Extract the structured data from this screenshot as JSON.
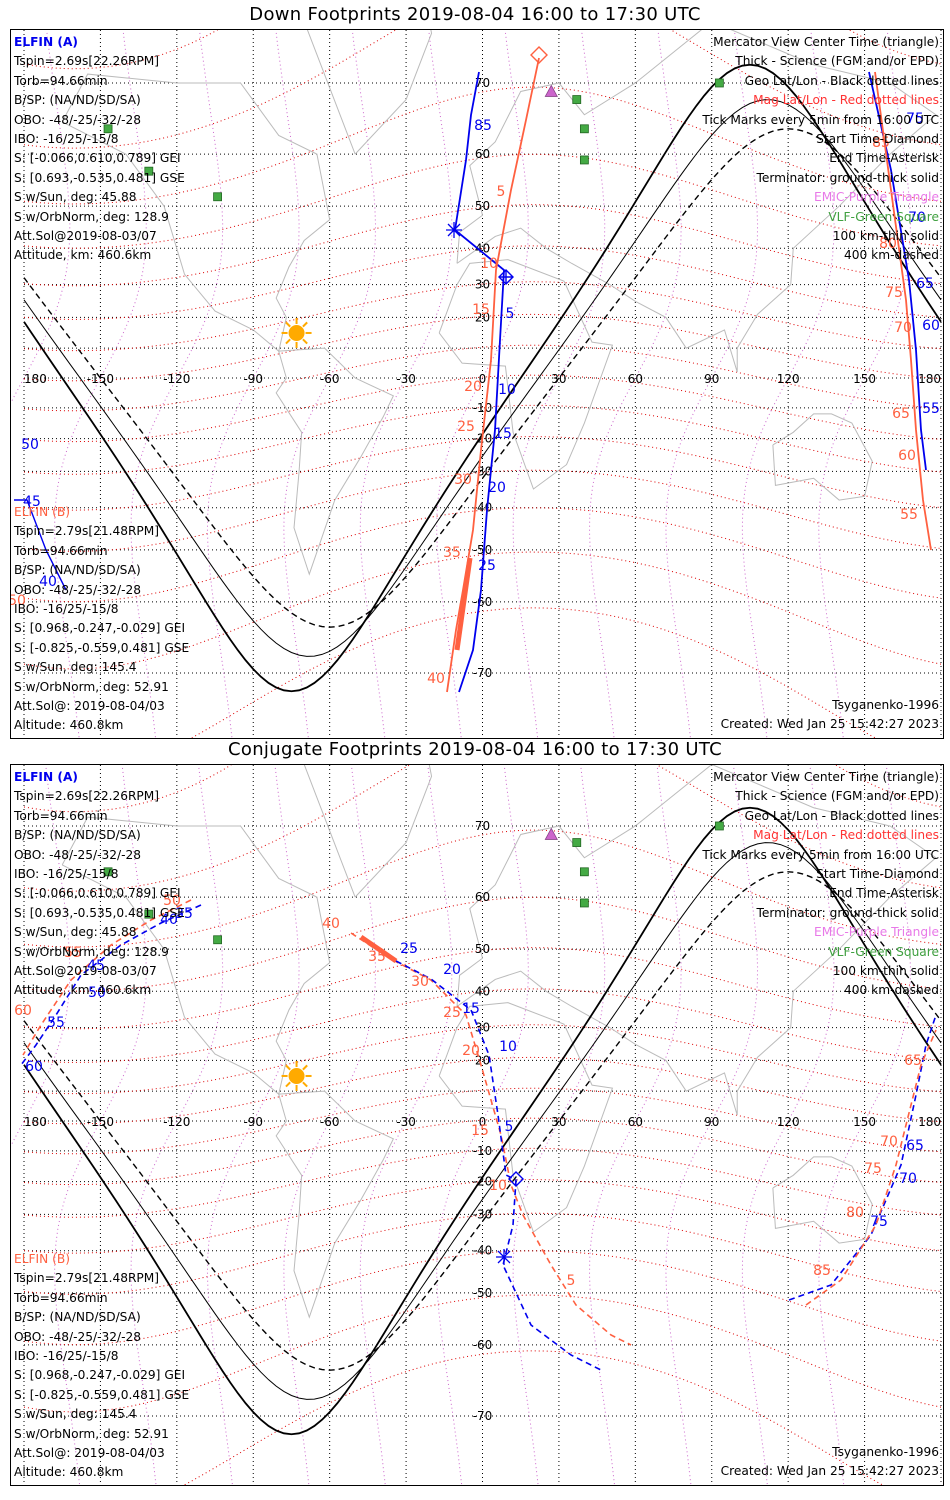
{
  "panels": [
    {
      "title": "Down Footprints 2019-08-04 16:00 to 17:30 UTC",
      "elfin_a": {
        "name": "ELFIN (A)",
        "lines": [
          "Tspin=2.69s[22.26RPM]",
          "Torb=94.66min",
          "B/SP: (NA/ND/SD/SA)",
          "OBO: -48/-25/-32/-28",
          "IBO: -16/25/-15/8",
          "S: [-0.066,0.610,0.789] GEI",
          "S: [0.693,-0.535,0.481] GSE",
          "S w/Sun, deg: 45.88",
          "S w/OrbNorm, deg: 128.9",
          "Att.Sol@2019-08-03/07",
          "Attitude, km: 460.6km"
        ]
      },
      "elfin_b": {
        "name": "ELFIN (B)",
        "lines": [
          "Tspin=2.79s[21.48RPM]",
          "Torb=94.66min",
          "B/SP: (NA/ND/SD/SA)",
          "OBO: -48/-25/-32/-28",
          "IBO: -16/25/-15/8",
          "S: [0.968,-0.247,-0.029] GEI",
          "S: [-0.825,-0.559,0.481] GSE",
          "S w/Sun, deg: 145.4",
          "S w/OrbNorm, deg: 52.91",
          "Att.Sol@: 2019-08-04/03",
          "Altitude: 460.8km"
        ]
      },
      "legend": [
        {
          "text": "Mercator View Center Time (triangle)",
          "color": "#000000"
        },
        {
          "text": "Thick - Science (FGM and/or EPD)",
          "color": "#000000"
        },
        {
          "text": "Geo Lat/Lon - Black dotted lines",
          "color": "#000000"
        },
        {
          "text": "Mag Lat/Lon - Red dotted lines",
          "color": "#ff3333"
        },
        {
          "text": "Tick Marks every 5min from 16:00 UTC",
          "color": "#000000"
        },
        {
          "text": "Start Time-Diamond",
          "color": "#000000"
        },
        {
          "text": "End Time-Asterisk",
          "color": "#000000"
        },
        {
          "text": "Terminator: ground-thick solid",
          "color": "#000000"
        },
        {
          "text": "EMIC-Purple Triangle",
          "color": "#e879e8"
        },
        {
          "text": "VLF-Green Square",
          "color": "#40a040"
        },
        {
          "text": "100 km-thin solid",
          "color": "#000000"
        },
        {
          "text": "400 km-dashed",
          "color": "#000000"
        }
      ],
      "model": "Tsyganenko-1996",
      "created": "Created: Wed Jan 25 15:42:27 2023"
    },
    {
      "title": "Conjugate Footprints 2019-08-04 16:00 to 17:30 UTC",
      "model": "Tsyganenko-1996",
      "created": "Created: Wed Jan 25 15:42:27 2023"
    }
  ],
  "lon_labels": [
    "180",
    "-150",
    "-120",
    "-90",
    "-60",
    "-30",
    "0",
    "30",
    "60",
    "90",
    "120",
    "150",
    "180"
  ],
  "lat_labels_down": [
    "70",
    "60",
    "50",
    "40",
    "30",
    "20",
    "-10",
    "-20",
    "-30",
    "-40",
    "-50",
    "-60",
    "-70"
  ],
  "lat_labels_conj": [
    "70",
    "60",
    "50",
    "40",
    "30",
    "20",
    "-10",
    "-20",
    "-30",
    "-40",
    "-50",
    "-60",
    "-70"
  ],
  "ticks_down_a": [
    "85",
    "5",
    "10",
    "15",
    "20",
    "25",
    "50",
    "45",
    "40",
    "75",
    "70",
    "65",
    "60",
    "55"
  ],
  "ticks_down_b": [
    "10",
    "15",
    "20",
    "25",
    "30",
    "35",
    "40",
    "5",
    "50",
    "85",
    "80",
    "75",
    "70",
    "65",
    "60",
    "55"
  ],
  "ticks_conj_a": [
    "25",
    "20",
    "15",
    "10",
    "5",
    "35",
    "40",
    "45",
    "50",
    "55",
    "60",
    "65",
    "70",
    "75"
  ],
  "ticks_conj_b": [
    "40",
    "35",
    "30",
    "25",
    "20",
    "15",
    "10",
    "5",
    "50",
    "55",
    "60",
    "65",
    "70",
    "75",
    "80",
    "85"
  ],
  "colors": {
    "elfin_a": "#0000ee",
    "elfin_b": "#ff6040",
    "geo_grid": "#000000",
    "mag_grid": "#dd0000",
    "coast": "#bbbbbb",
    "emic": "#cc66cc",
    "vlf": "#44aa44",
    "sun": "#ffaa00"
  }
}
